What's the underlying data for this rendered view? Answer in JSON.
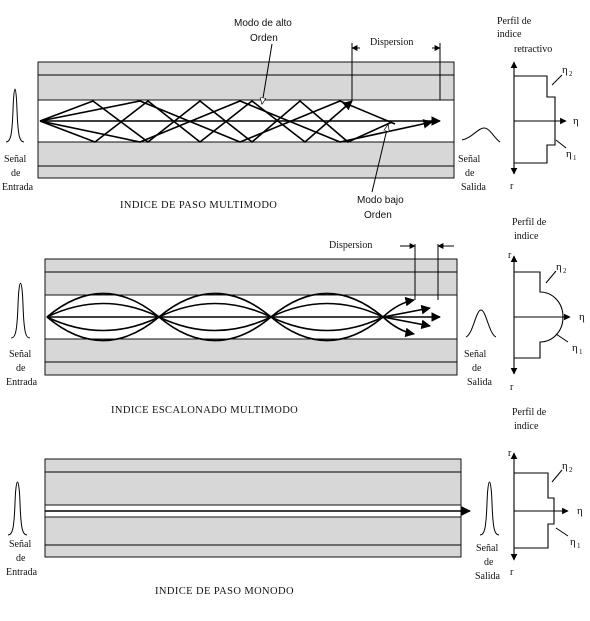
{
  "sections": [
    {
      "caption": "INDICE DE PASO MULTIMODO",
      "input_label": [
        "Señal",
        "de",
        "Entrada"
      ],
      "output_label": [
        "Señal",
        "de",
        "Salida"
      ],
      "annotations": {
        "high_order": [
          "Modo de alto",
          "Orden"
        ],
        "low_order": [
          "Modo bajo",
          "Orden"
        ],
        "dispersion": "Dispersion"
      },
      "profile_title": [
        "Perfil de",
        "indice",
        "retractivo"
      ],
      "profile_type": "step"
    },
    {
      "caption": "INDICE ESCALONADO MULTIMODO",
      "input_label": [
        "Señal",
        "de",
        "Entrada"
      ],
      "output_label": [
        "Señal",
        "de",
        "Salida"
      ],
      "annotations": {
        "dispersion": "Dispersion"
      },
      "profile_title": [
        "Perfil de",
        "indice"
      ],
      "profile_type": "graded"
    },
    {
      "caption": "INDICE DE PASO MONODO",
      "input_label": [
        "Señal",
        "de",
        "Entrada"
      ],
      "output_label": [
        "Señal",
        "de",
        "Salida"
      ],
      "profile_title": [
        "Perfil de",
        "indice"
      ],
      "profile_type": "step-small"
    }
  ],
  "profile_axes": {
    "r_label": "r",
    "n_label": "η",
    "n1_sub": "1",
    "n2_sub": "2"
  }
}
